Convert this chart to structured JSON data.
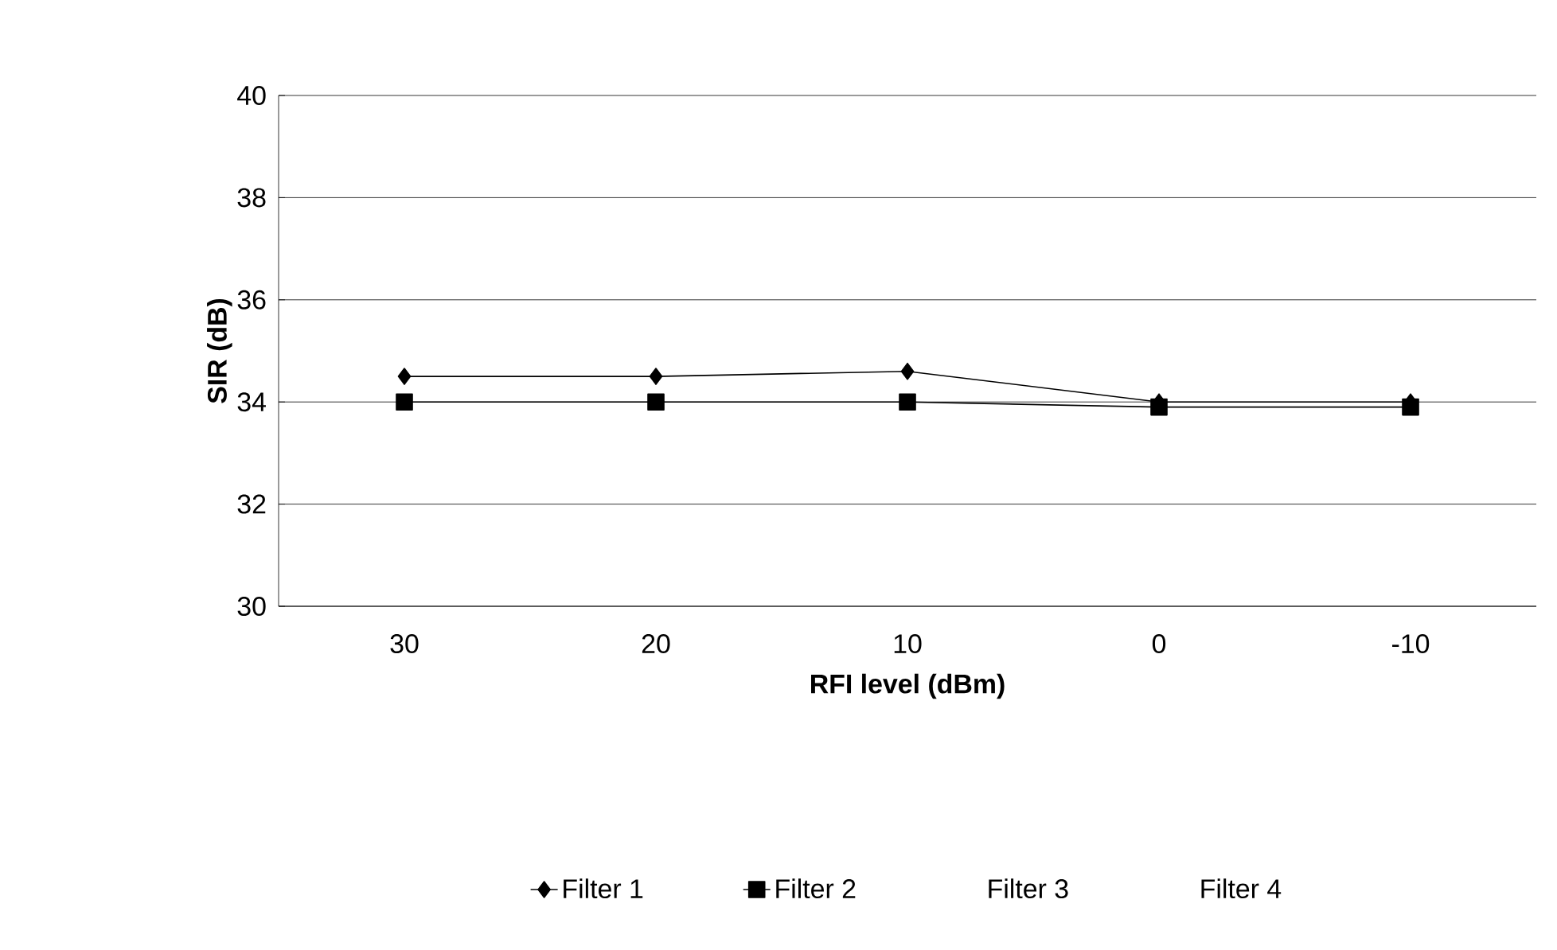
{
  "chart_data": {
    "type": "line",
    "xlabel": "RFI level (dBm)",
    "ylabel": "SIR (dB)",
    "categories": [
      "30",
      "20",
      "10",
      "0",
      "-10"
    ],
    "series": [
      {
        "name": "Filter 1",
        "color": "#000000",
        "marker": "diamond",
        "values": [
          34.5,
          34.5,
          34.6,
          34.0,
          34.0
        ]
      },
      {
        "name": "Filter 2",
        "color": "#000000",
        "marker": "square",
        "values": [
          34.0,
          34.0,
          34.0,
          33.9,
          33.9
        ]
      },
      {
        "name": "Filter 3",
        "marker": "none",
        "values": [
          null,
          null,
          null,
          null,
          null
        ]
      },
      {
        "name": "Filter 4",
        "marker": "none",
        "values": [
          null,
          null,
          null,
          null,
          null
        ]
      }
    ],
    "ylim": [
      30,
      40
    ],
    "yticks": [
      30,
      32,
      34,
      36,
      38,
      40
    ],
    "grid": "y",
    "legend": "bottom",
    "line_style": "solid"
  }
}
